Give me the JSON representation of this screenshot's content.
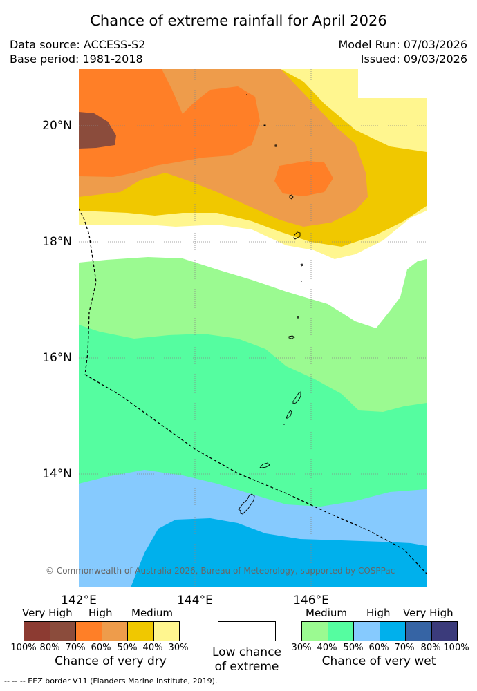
{
  "title": "Chance of extreme rainfall for April 2026",
  "data_source": "Data source: ACCESS-S2",
  "base_period": "Base period: 1981-2018",
  "model_run": "Model Run: 07/03/2026",
  "issued": "Issued: 09/03/2026",
  "latitudes": [
    "20°N",
    "18°N",
    "16°N",
    "14°N"
  ],
  "longitudes": [
    "142°E",
    "144°E",
    "146°E"
  ],
  "copyright": "© Commonwealth of Australia 2026, Bureau of Meteorology, supported by COSPPac",
  "legend": {
    "dry": {
      "headers": [
        "Very High",
        "High",
        "Medium"
      ],
      "percents": [
        "100%",
        "80%",
        "70%",
        "60%",
        "50%",
        "40%",
        "30%"
      ],
      "caption": "Chance of very dry",
      "colors": [
        "#8c3b32",
        "#8b4c3c",
        "#ff7f27",
        "#ee9c4b",
        "#f0c800",
        "#fff68f"
      ]
    },
    "neutral": {
      "caption_line1": "Low chance",
      "caption_line2": "of extreme",
      "color": "#ffffff"
    },
    "wet": {
      "headers": [
        "Medium",
        "High",
        "Very High"
      ],
      "percents": [
        "30%",
        "40%",
        "50%",
        "60%",
        "70%",
        "80%",
        "100%"
      ],
      "caption": "Chance of very wet",
      "colors": [
        "#9bfa91",
        "#55fda0",
        "#86cafe",
        "#00b0ec",
        "#3664a4",
        "#3b3b7b"
      ]
    }
  },
  "eez_note": "--  --  -- EEZ border V11 (Flanders Marine Institute, 2019)."
}
